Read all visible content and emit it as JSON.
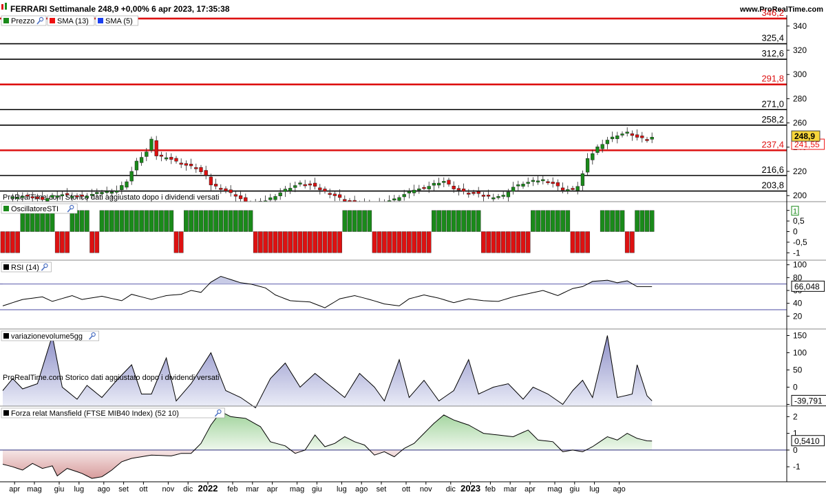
{
  "header": {
    "title": "FERRARI Settimanale 248,9 +0,00% 6 apr 2023, 17:35:38",
    "site": "www.ProRealTime.com"
  },
  "watermark": "ProRealTime.com  Storico dati aggiustato dopo i dividendi versati",
  "colors": {
    "up": "#1a8a1a",
    "down": "#dd1111",
    "sma13": "#ee1111",
    "sma5": "#1a3ff0",
    "line": "#000000",
    "rsi_fill": "#c8cbe6",
    "vol_fill": "#c5c6e3",
    "mans_pos": "#c4e3c0",
    "mans_neg": "#e7bcbc"
  },
  "chart_data": [
    {
      "type": "candlestick",
      "name": "price",
      "legend": [
        {
          "label": "Prezzo",
          "icon": "candle-icon",
          "color": "#1a8a1a"
        },
        {
          "label": "SMA (13)",
          "color": "#ee1111"
        },
        {
          "label": "SMA (5)",
          "color": "#1a3ff0"
        }
      ],
      "ylim": [
        195,
        349
      ],
      "y_ticks": [
        200,
        220,
        240,
        260,
        280,
        300,
        320,
        340
      ],
      "levels": [
        {
          "value": 346.2,
          "label": "346,2",
          "color": "#dd1111"
        },
        {
          "value": 325.4,
          "label": "325,4",
          "color": "#000000"
        },
        {
          "value": 312.6,
          "label": "312,6",
          "color": "#000000"
        },
        {
          "value": 291.8,
          "label": "291,8",
          "color": "#dd1111"
        },
        {
          "value": 271.0,
          "label": "271,0",
          "color": "#000000"
        },
        {
          "value": 258.2,
          "label": "258,2",
          "color": "#000000"
        },
        {
          "value": 237.4,
          "label": "237,4",
          "color": "#dd1111"
        },
        {
          "value": 216.6,
          "label": "216,6",
          "color": "#000000"
        },
        {
          "value": 203.8,
          "label": "203,8",
          "color": "#000000"
        }
      ],
      "close_points": [
        [
          1,
          198
        ],
        [
          5,
          200
        ],
        [
          8,
          196
        ],
        [
          10,
          200
        ],
        [
          12,
          201
        ],
        [
          16,
          199
        ],
        [
          20,
          203
        ],
        [
          23,
          204
        ],
        [
          25,
          212
        ],
        [
          27,
          228
        ],
        [
          29,
          236
        ],
        [
          30,
          246
        ],
        [
          31,
          233
        ],
        [
          33,
          232
        ],
        [
          35,
          228
        ],
        [
          37,
          225
        ],
        [
          39,
          223
        ],
        [
          41,
          216
        ],
        [
          42,
          209
        ],
        [
          44,
          206
        ],
        [
          47,
          200
        ],
        [
          50,
          192
        ],
        [
          53,
          196
        ],
        [
          55,
          200
        ],
        [
          57,
          205
        ],
        [
          60,
          210
        ],
        [
          62,
          209
        ],
        [
          64,
          205
        ],
        [
          67,
          200
        ],
        [
          69,
          196
        ],
        [
          71,
          194
        ],
        [
          73,
          192
        ],
        [
          75,
          193
        ],
        [
          77,
          195
        ],
        [
          79,
          197
        ],
        [
          81,
          201
        ],
        [
          83,
          205
        ],
        [
          85,
          206
        ],
        [
          87,
          210
        ],
        [
          89,
          212
        ],
        [
          91,
          206
        ],
        [
          93,
          203
        ],
        [
          95,
          202
        ],
        [
          97,
          200
        ],
        [
          99,
          199
        ],
        [
          101,
          200
        ],
        [
          103,
          207
        ],
        [
          105,
          210
        ],
        [
          107,
          212
        ],
        [
          109,
          213
        ],
        [
          111,
          210
        ],
        [
          113,
          205
        ],
        [
          115,
          205
        ],
        [
          116,
          208
        ],
        [
          117,
          218
        ],
        [
          118,
          230
        ],
        [
          120,
          240
        ],
        [
          122,
          246
        ],
        [
          124,
          250
        ],
        [
          126,
          252
        ],
        [
          128,
          248
        ],
        [
          130,
          246
        ],
        [
          131,
          248
        ]
      ],
      "last_price": {
        "value": 248.9,
        "label": "248,9"
      },
      "sma13_last": {
        "value": 241.55,
        "label": "241,55"
      }
    },
    {
      "type": "bar",
      "name": "Oscillatore STI",
      "legend": [
        {
          "label": "OscillatoreSTI",
          "icon": "wrench-icon"
        }
      ],
      "ylim": [
        -1.25,
        1.25
      ],
      "y_ticks": [
        {
          "value": 1,
          "label": "1"
        },
        {
          "value": 0.5,
          "label": "0,5"
        },
        {
          "value": 0,
          "label": "0"
        },
        {
          "value": -0.5,
          "label": "-0,5"
        },
        {
          "value": -1,
          "label": "-1"
        }
      ],
      "runs": [
        [
          0,
          3,
          -1
        ],
        [
          4,
          10,
          1
        ],
        [
          11,
          13,
          -1
        ],
        [
          14,
          17,
          1
        ],
        [
          18,
          19,
          -1
        ],
        [
          20,
          34,
          1
        ],
        [
          35,
          36,
          -1
        ],
        [
          37,
          50,
          1
        ],
        [
          51,
          68,
          -1
        ],
        [
          69,
          74,
          1
        ],
        [
          75,
          86,
          -1
        ],
        [
          87,
          96,
          1
        ],
        [
          97,
          106,
          -1
        ],
        [
          107,
          114,
          1
        ],
        [
          115,
          118,
          -1
        ],
        [
          119,
          120,
          0
        ],
        [
          121,
          125,
          1
        ],
        [
          126,
          127,
          -1
        ],
        [
          128,
          131,
          1
        ]
      ],
      "last_value": {
        "value": 1,
        "label": "1"
      }
    },
    {
      "type": "line",
      "name": "RSI (14)",
      "legend": [
        {
          "label": "RSI (14)",
          "icon": "wrench-icon"
        }
      ],
      "ylim": [
        0,
        105
      ],
      "y_ticks": [
        20,
        40,
        60,
        80,
        100
      ],
      "bands": [
        70,
        30
      ],
      "points": [
        [
          0,
          36
        ],
        [
          4,
          46
        ],
        [
          8,
          50
        ],
        [
          10,
          43
        ],
        [
          14,
          52
        ],
        [
          16,
          46
        ],
        [
          20,
          51
        ],
        [
          24,
          44
        ],
        [
          26,
          54
        ],
        [
          30,
          46
        ],
        [
          33,
          52
        ],
        [
          36,
          54
        ],
        [
          38,
          60
        ],
        [
          40,
          57
        ],
        [
          42,
          73
        ],
        [
          44,
          82
        ],
        [
          46,
          77
        ],
        [
          48,
          72
        ],
        [
          50,
          70
        ],
        [
          53,
          64
        ],
        [
          55,
          53
        ],
        [
          58,
          44
        ],
        [
          62,
          42
        ],
        [
          65,
          33
        ],
        [
          68,
          47
        ],
        [
          71,
          52
        ],
        [
          74,
          46
        ],
        [
          77,
          39
        ],
        [
          80,
          36
        ],
        [
          82,
          47
        ],
        [
          85,
          53
        ],
        [
          88,
          48
        ],
        [
          91,
          41
        ],
        [
          94,
          47
        ],
        [
          97,
          44
        ],
        [
          100,
          43
        ],
        [
          103,
          50
        ],
        [
          106,
          55
        ],
        [
          109,
          60
        ],
        [
          112,
          52
        ],
        [
          115,
          63
        ],
        [
          117,
          66
        ],
        [
          119,
          74
        ],
        [
          122,
          76
        ],
        [
          124,
          72
        ],
        [
          126,
          75
        ],
        [
          128,
          66
        ],
        [
          130,
          66
        ],
        [
          131,
          66.048
        ]
      ],
      "last_value": {
        "value": 66.048,
        "label": "66,048"
      }
    },
    {
      "type": "area",
      "name": "variazionevolume5gg",
      "legend": [
        {
          "label": "variazionevolume5gg",
          "icon": "wrench-icon"
        }
      ],
      "ylim": [
        -55,
        165
      ],
      "y_ticks": [
        {
          "value": 150,
          "label": "150"
        },
        {
          "value": 100,
          "label": "100"
        },
        {
          "value": 50,
          "label": "50"
        },
        {
          "value": 0,
          "label": "0"
        },
        {
          "value": -50,
          "label": "-50"
        }
      ],
      "points": [
        [
          0,
          -10
        ],
        [
          2,
          25
        ],
        [
          4,
          -5
        ],
        [
          7,
          10
        ],
        [
          10,
          150
        ],
        [
          12,
          0
        ],
        [
          15,
          -35
        ],
        [
          17,
          5
        ],
        [
          20,
          -30
        ],
        [
          23,
          20
        ],
        [
          26,
          65
        ],
        [
          28,
          -20
        ],
        [
          30,
          -20
        ],
        [
          33,
          85
        ],
        [
          35,
          -40
        ],
        [
          38,
          10
        ],
        [
          42,
          100
        ],
        [
          45,
          -10
        ],
        [
          48,
          -30
        ],
        [
          51,
          -60
        ],
        [
          54,
          25
        ],
        [
          57,
          70
        ],
        [
          60,
          0
        ],
        [
          63,
          40
        ],
        [
          66,
          5
        ],
        [
          69,
          -30
        ],
        [
          72,
          40
        ],
        [
          75,
          0
        ],
        [
          77,
          -40
        ],
        [
          80,
          80
        ],
        [
          82,
          -30
        ],
        [
          85,
          20
        ],
        [
          88,
          -40
        ],
        [
          91,
          -10
        ],
        [
          94,
          80
        ],
        [
          96,
          -20
        ],
        [
          99,
          0
        ],
        [
          102,
          10
        ],
        [
          105,
          -35
        ],
        [
          107,
          0
        ],
        [
          110,
          -20
        ],
        [
          113,
          -50
        ],
        [
          115,
          -10
        ],
        [
          117,
          20
        ],
        [
          119,
          -30
        ],
        [
          122,
          150
        ],
        [
          124,
          -30
        ],
        [
          127,
          -20
        ],
        [
          128,
          65
        ],
        [
          130,
          -25
        ],
        [
          131,
          -39.791
        ]
      ],
      "last_value": {
        "value": -39.791,
        "label": "-39,791"
      }
    },
    {
      "type": "area",
      "name": "Forza relat Mansfield (FTSE MIB40 Index) (52 10)",
      "legend": [
        {
          "label": "Forza relat Mansfield (FTSE MIB40 Index) (52 10)",
          "icon": "wrench-icon"
        }
      ],
      "ylim": [
        -1.9,
        2.55
      ],
      "y_ticks": [
        {
          "value": 2,
          "label": "2"
        },
        {
          "value": 1,
          "label": "1"
        },
        {
          "value": 0,
          "label": "0"
        },
        {
          "value": -1,
          "label": "-1"
        }
      ],
      "points": [
        [
          0,
          -0.85
        ],
        [
          2,
          -1.0
        ],
        [
          4,
          -1.2
        ],
        [
          6,
          -0.8
        ],
        [
          8,
          -1.1
        ],
        [
          10,
          -0.95
        ],
        [
          11,
          -1.55
        ],
        [
          13,
          -1.1
        ],
        [
          16,
          -1.4
        ],
        [
          18,
          -1.7
        ],
        [
          20,
          -1.6
        ],
        [
          22,
          -1.2
        ],
        [
          24,
          -0.7
        ],
        [
          26,
          -0.5
        ],
        [
          30,
          -0.3
        ],
        [
          34,
          -0.35
        ],
        [
          36,
          -0.2
        ],
        [
          38,
          -0.2
        ],
        [
          40,
          0.4
        ],
        [
          42,
          1.5
        ],
        [
          44,
          2.3
        ],
        [
          46,
          2.0
        ],
        [
          49,
          1.9
        ],
        [
          52,
          1.4
        ],
        [
          54,
          0.5
        ],
        [
          57,
          0.25
        ],
        [
          59,
          -0.2
        ],
        [
          61,
          0.0
        ],
        [
          63,
          0.9
        ],
        [
          65,
          0.2
        ],
        [
          67,
          0.4
        ],
        [
          69,
          0.8
        ],
        [
          71,
          0.5
        ],
        [
          73,
          0.3
        ],
        [
          75,
          -0.3
        ],
        [
          77,
          -0.1
        ],
        [
          79,
          -0.4
        ],
        [
          81,
          0.1
        ],
        [
          83,
          0.4
        ],
        [
          85,
          1.0
        ],
        [
          87,
          1.6
        ],
        [
          89,
          2.1
        ],
        [
          91,
          1.8
        ],
        [
          94,
          1.5
        ],
        [
          97,
          1.0
        ],
        [
          100,
          0.9
        ],
        [
          103,
          0.8
        ],
        [
          106,
          1.2
        ],
        [
          108,
          0.6
        ],
        [
          111,
          0.5
        ],
        [
          113,
          -0.1
        ],
        [
          115,
          0.0
        ],
        [
          117,
          -0.1
        ],
        [
          119,
          0.2
        ],
        [
          122,
          0.8
        ],
        [
          124,
          0.6
        ],
        [
          126,
          1.0
        ],
        [
          128,
          0.7
        ],
        [
          130,
          0.55
        ],
        [
          131,
          0.541
        ]
      ],
      "last_value": {
        "value": 0.541,
        "label": "0,5410"
      }
    }
  ],
  "time_axis": {
    "labels": [
      {
        "i": 1,
        "label": "apr"
      },
      {
        "i": 5,
        "label": "mag"
      },
      {
        "i": 10,
        "label": "giu"
      },
      {
        "i": 14,
        "label": "lug"
      },
      {
        "i": 19,
        "label": "ago"
      },
      {
        "i": 23,
        "label": "set"
      },
      {
        "i": 27,
        "label": "ott"
      },
      {
        "i": 32,
        "label": "nov"
      },
      {
        "i": 36,
        "label": "dic"
      },
      {
        "i": 40,
        "label": "2022",
        "bold": true
      },
      {
        "i": 45,
        "label": "feb"
      },
      {
        "i": 49,
        "label": "mar"
      },
      {
        "i": 53,
        "label": "apr"
      },
      {
        "i": 58,
        "label": "mag"
      },
      {
        "i": 62,
        "label": "giu"
      },
      {
        "i": 67,
        "label": "lug"
      },
      {
        "i": 71,
        "label": "ago"
      },
      {
        "i": 75,
        "label": "set"
      },
      {
        "i": 80,
        "label": "ott"
      },
      {
        "i": 84,
        "label": "nov"
      },
      {
        "i": 89,
        "label": "dic"
      },
      {
        "i": 93,
        "label": "2023",
        "bold": true
      },
      {
        "i": 97,
        "label": "feb"
      },
      {
        "i": 101,
        "label": "mar"
      },
      {
        "i": 105,
        "label": "apr"
      },
      {
        "i": 110,
        "label": "mag"
      },
      {
        "i": 114,
        "label": "giu"
      },
      {
        "i": 118,
        "label": "lug"
      },
      {
        "i": 123,
        "label": "ago"
      }
    ]
  }
}
